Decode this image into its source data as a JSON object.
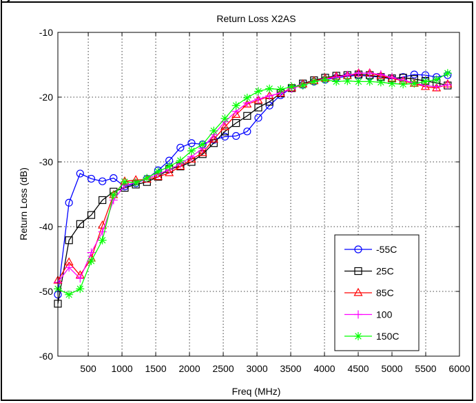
{
  "chart_data": {
    "type": "line",
    "title": "Return Loss X2AS",
    "xlabel": "Freq (MHz)",
    "ylabel": "Return Loss (dB)",
    "xlim": [
      50,
      6000
    ],
    "ylim": [
      -60,
      -10
    ],
    "xticks": [
      500,
      1000,
      1500,
      2000,
      2500,
      3000,
      3500,
      4000,
      4500,
      5000,
      5500,
      6000
    ],
    "yticks": [
      -10,
      -20,
      -30,
      -40,
      -50,
      -60
    ],
    "grid": true,
    "legend_position": "bottom-right",
    "x": [
      50,
      215,
      380,
      545,
      710,
      875,
      1040,
      1205,
      1370,
      1535,
      1700,
      1865,
      2030,
      2195,
      2360,
      2525,
      2690,
      2855,
      3020,
      3185,
      3350,
      3515,
      3680,
      3845,
      4010,
      4175,
      4340,
      4505,
      4670,
      4835,
      5000,
      5165,
      5330,
      5495,
      5660,
      5825
    ],
    "series": [
      {
        "name": "-55C",
        "color": "#0000ff",
        "marker": "circle",
        "values": [
          -50.5,
          -36.3,
          -31.8,
          -32.6,
          -33.0,
          -32.5,
          -33.8,
          -33.3,
          -32.6,
          -31.3,
          -29.8,
          -27.8,
          -27.1,
          -27.3,
          -26.6,
          -26.1,
          -26.0,
          -25.3,
          -23.2,
          -21.3,
          -19.7,
          -18.6,
          -18.1,
          -17.6,
          -17.3,
          -17.0,
          -16.8,
          -16.6,
          -16.8,
          -16.9,
          -17.2,
          -16.9,
          -16.5,
          -16.6,
          -16.9,
          -16.6
        ]
      },
      {
        "name": "25C",
        "color": "#000000",
        "marker": "square",
        "values": [
          -51.9,
          -42.1,
          -39.6,
          -38.2,
          -35.9,
          -34.6,
          -34.0,
          -33.5,
          -33.1,
          -32.3,
          -31.1,
          -30.7,
          -30.0,
          -28.8,
          -27.1,
          -25.3,
          -24.0,
          -22.9,
          -21.6,
          -20.7,
          -19.4,
          -18.6,
          -17.9,
          -17.4,
          -17.0,
          -16.7,
          -16.6,
          -16.5,
          -16.6,
          -16.9,
          -17.1,
          -17.0,
          -17.2,
          -17.5,
          -17.8,
          -18.2
        ]
      },
      {
        "name": "85C",
        "color": "#ff0000",
        "marker": "triangle",
        "values": [
          -48.3,
          -45.5,
          -47.5,
          -44.9,
          -39.8,
          -35.1,
          -33.0,
          -32.8,
          -32.7,
          -32.3,
          -31.7,
          -30.7,
          -29.6,
          -28.6,
          -26.5,
          -24.6,
          -22.7,
          -21.1,
          -20.5,
          -19.8,
          -19.4,
          -18.6,
          -18.0,
          -17.5,
          -17.1,
          -16.8,
          -16.7,
          -16.3,
          -16.3,
          -16.7,
          -17.1,
          -17.5,
          -17.9,
          -18.4,
          -18.6,
          -18.0
        ]
      },
      {
        "name": "100",
        "color": "#ff00ff",
        "marker": "plus",
        "values": [
          -48.6,
          -46.3,
          -48.0,
          -44.0,
          -40.8,
          -35.9,
          -33.6,
          -33.2,
          -32.6,
          -31.9,
          -31.2,
          -30.3,
          -29.2,
          -27.9,
          -25.8,
          -23.8,
          -22.2,
          -20.9,
          -20.3,
          -19.8,
          -19.4,
          -18.7,
          -18.1,
          -17.6,
          -17.2,
          -16.9,
          -16.6,
          -16.3,
          -16.3,
          -16.5,
          -17.0,
          -17.4,
          -17.8,
          -18.2,
          -18.4,
          -18.1
        ]
      },
      {
        "name": "150C",
        "color": "#00ff00",
        "marker": "asterisk",
        "values": [
          -49.6,
          -50.5,
          -49.6,
          -45.3,
          -42.1,
          -35.1,
          -33.1,
          -33.2,
          -32.5,
          -31.5,
          -30.7,
          -29.8,
          -28.3,
          -27.3,
          -25.2,
          -23.3,
          -21.3,
          -20.1,
          -19.1,
          -18.7,
          -18.8,
          -18.4,
          -18.2,
          -17.6,
          -17.3,
          -17.6,
          -17.5,
          -17.6,
          -17.6,
          -17.7,
          -17.9,
          -18.0,
          -17.9,
          -17.6,
          -17.3,
          -16.3
        ]
      }
    ]
  }
}
